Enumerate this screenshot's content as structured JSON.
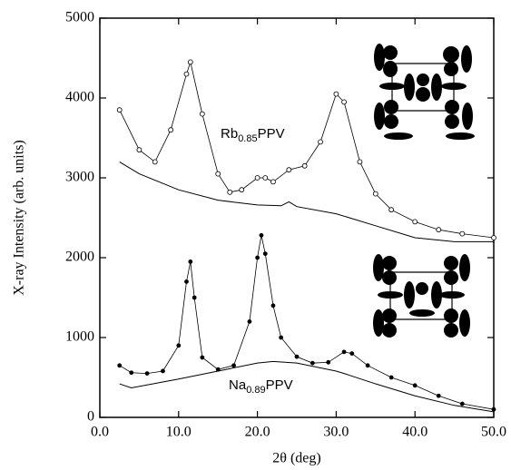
{
  "chart_data": {
    "type": "line",
    "x_label": "2θ (deg)",
    "y_label": "X-ray Intensity  (arb. units)",
    "xlim": [
      0,
      50
    ],
    "ylim": [
      0,
      5000
    ],
    "xticks": [
      {
        "value": 0,
        "label": "0.0"
      },
      {
        "value": 10,
        "label": "10.0"
      },
      {
        "value": 20,
        "label": "20.0"
      },
      {
        "value": 30,
        "label": "30.0"
      },
      {
        "value": 40,
        "label": "40.0"
      },
      {
        "value": 50,
        "label": "50.0"
      }
    ],
    "yticks": [
      0,
      1000,
      2000,
      3000,
      4000,
      5000
    ],
    "annotations": [
      [
        "Rb",
        "0.85",
        "PPV"
      ],
      [
        "Na",
        "0.89",
        "PPV"
      ]
    ],
    "series": [
      {
        "color": "#000000",
        "style": "open-markers",
        "x": [
          2.5,
          5,
          7,
          9,
          11,
          11.5,
          13,
          15,
          16.5,
          18,
          20,
          21,
          22,
          24,
          26,
          28,
          30,
          31,
          33,
          35,
          37,
          40,
          43,
          46,
          50
        ],
        "values": [
          3850,
          3350,
          3200,
          3600,
          4300,
          4450,
          3800,
          3050,
          2820,
          2850,
          3000,
          3000,
          2950,
          3100,
          3150,
          3450,
          4050,
          3950,
          3200,
          2800,
          2600,
          2450,
          2350,
          2300,
          2250
        ]
      },
      {
        "color": "#000000",
        "style": "line",
        "x": [
          2.5,
          5,
          10,
          15,
          20,
          23,
          24,
          25,
          30,
          35,
          40,
          45,
          50
        ],
        "values": [
          3200,
          3050,
          2850,
          2720,
          2660,
          2650,
          2700,
          2640,
          2550,
          2400,
          2250,
          2200,
          2200
        ]
      },
      {
        "color": "#000000",
        "style": "filled-markers",
        "x": [
          2.5,
          4,
          6,
          8,
          10,
          11,
          11.5,
          12,
          13,
          15,
          17,
          19,
          20,
          20.5,
          21,
          22,
          23,
          25,
          27,
          29,
          31,
          32,
          34,
          37,
          40,
          43,
          46,
          50
        ],
        "values": [
          650,
          560,
          550,
          580,
          900,
          1700,
          1950,
          1500,
          750,
          600,
          650,
          1200,
          2000,
          2280,
          2050,
          1400,
          1000,
          760,
          680,
          690,
          820,
          800,
          650,
          500,
          400,
          270,
          170,
          100
        ]
      },
      {
        "color": "#000000",
        "style": "line",
        "x": [
          2.5,
          4,
          10,
          15,
          20,
          22,
          25,
          30,
          31,
          35,
          40,
          45,
          50
        ],
        "values": [
          420,
          370,
          480,
          580,
          680,
          700,
          680,
          580,
          550,
          420,
          270,
          150,
          70
        ]
      }
    ]
  }
}
